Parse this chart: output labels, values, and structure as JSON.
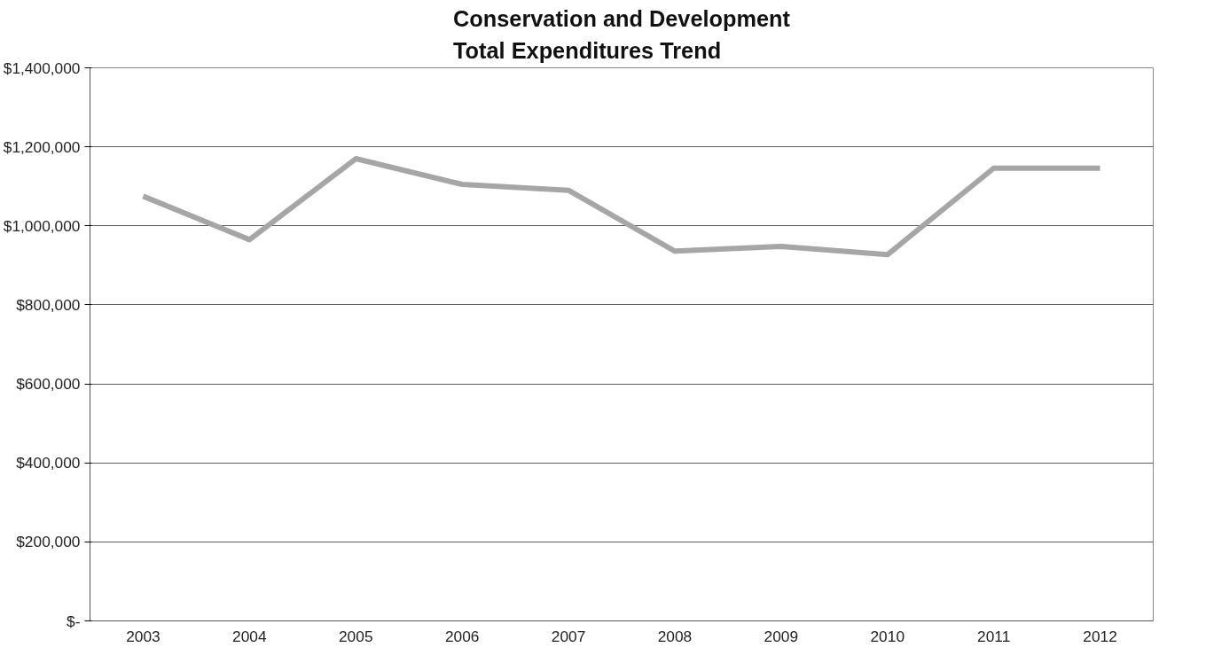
{
  "chart_data": {
    "type": "line",
    "title": "Conservation and Development\nTotal Expenditures Trend",
    "categories": [
      "2003",
      "2004",
      "2005",
      "2006",
      "2007",
      "2008",
      "2009",
      "2010",
      "2011",
      "2012"
    ],
    "series": [
      {
        "color": "#a6a6a6",
        "values": [
          1075000,
          965000,
          1170000,
          1105000,
          1090000,
          936000,
          948000,
          927000,
          1146000,
          1146000
        ]
      }
    ],
    "ylim": [
      0,
      1400000
    ],
    "yticks": [
      {
        "value": 0,
        "label": "$-"
      },
      {
        "value": 200000,
        "label": "$200,000"
      },
      {
        "value": 400000,
        "label": "$400,000"
      },
      {
        "value": 600000,
        "label": "$600,000"
      },
      {
        "value": 800000,
        "label": "$800,000"
      },
      {
        "value": 1000000,
        "label": "$1,000,000"
      },
      {
        "value": 1200000,
        "label": "$1,200,000"
      },
      {
        "value": 1400000,
        "label": "$1,400,000"
      }
    ],
    "grid": "y",
    "marker": "none",
    "line_style": "solid"
  }
}
